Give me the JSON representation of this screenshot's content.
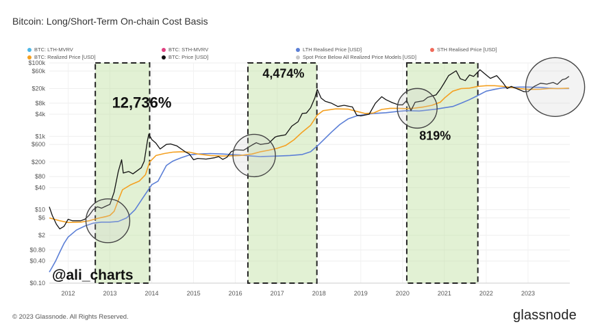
{
  "header": {
    "title": "Bitcoin: Long/Short-Term On-chain Cost Basis"
  },
  "legend": [
    {
      "label": "BTC: LTH-MVRV",
      "color": "#4fb7e6",
      "enabled": false
    },
    {
      "label": "BTC: STH-MVRV",
      "color": "#e04080",
      "enabled": false
    },
    {
      "label": "LTH Realised Price [USD]",
      "color": "#5b7fd6",
      "enabled": true
    },
    {
      "label": "STH Realised Price [USD]",
      "color": "#f06a5a",
      "enabled": false
    },
    {
      "label": "BTC: Realized Price [USD]",
      "color": "#f4a020",
      "enabled": true
    },
    {
      "label": "BTC: Price [USD]",
      "color": "#111111",
      "enabled": true
    },
    {
      "label": "Spot Price Below All Realized Price Models [USD]",
      "color": "#c9c9c9",
      "enabled": false
    }
  ],
  "footer": {
    "copyright": "© 2023 Glassnode. All Rights Reserved.",
    "brand": "glassnode"
  },
  "watermark": "@ali_charts",
  "chart_data": {
    "type": "line",
    "title": "Bitcoin: Long/Short-Term On-chain Cost Basis",
    "xlabel": "",
    "ylabel": "",
    "y_scale": "log",
    "xlim": [
      2011.55,
      2024.0
    ],
    "ylim": [
      0.1,
      100000
    ],
    "x_ticks": [
      "2012",
      "2013",
      "2014",
      "2015",
      "2016",
      "2017",
      "2018",
      "2019",
      "2020",
      "2021",
      "2022",
      "2023"
    ],
    "x_tick_values": [
      2012,
      2013,
      2014,
      2015,
      2016,
      2017,
      2018,
      2019,
      2020,
      2021,
      2022,
      2023
    ],
    "y_ticks": [
      "$0.10",
      "$0.40",
      "$0.80",
      "$2",
      "$6",
      "$10",
      "$40",
      "$80",
      "$200",
      "$600",
      "$1k",
      "$4k",
      "$8k",
      "$20k",
      "$60k",
      "$100k"
    ],
    "y_tick_values": [
      0.1,
      0.4,
      0.8,
      2,
      6,
      10,
      40,
      80,
      200,
      600,
      1000,
      4000,
      8000,
      20000,
      60000,
      100000
    ],
    "grid": true,
    "legend_position": "top",
    "series": [
      {
        "name": "BTC: Price [USD]",
        "color": "#111111",
        "points": [
          [
            2011.55,
            12
          ],
          [
            2011.62,
            7
          ],
          [
            2011.72,
            4
          ],
          [
            2011.8,
            3
          ],
          [
            2011.9,
            3.5
          ],
          [
            2012.0,
            5.5
          ],
          [
            2012.1,
            5
          ],
          [
            2012.2,
            5
          ],
          [
            2012.3,
            5
          ],
          [
            2012.4,
            5.5
          ],
          [
            2012.5,
            7
          ],
          [
            2012.6,
            10
          ],
          [
            2012.7,
            12
          ],
          [
            2012.8,
            11
          ],
          [
            2012.9,
            12.5
          ],
          [
            2013.0,
            14
          ],
          [
            2013.1,
            30
          ],
          [
            2013.2,
            110
          ],
          [
            2013.28,
            230
          ],
          [
            2013.32,
            100
          ],
          [
            2013.45,
            110
          ],
          [
            2013.55,
            95
          ],
          [
            2013.65,
            115
          ],
          [
            2013.75,
            140
          ],
          [
            2013.82,
            210
          ],
          [
            2013.9,
            800
          ],
          [
            2013.93,
            1150
          ],
          [
            2014.0,
            820
          ],
          [
            2014.1,
            650
          ],
          [
            2014.2,
            450
          ],
          [
            2014.35,
            600
          ],
          [
            2014.45,
            620
          ],
          [
            2014.6,
            550
          ],
          [
            2014.8,
            380
          ],
          [
            2014.9,
            330
          ],
          [
            2015.0,
            230
          ],
          [
            2015.1,
            250
          ],
          [
            2015.3,
            240
          ],
          [
            2015.5,
            260
          ],
          [
            2015.6,
            280
          ],
          [
            2015.7,
            235
          ],
          [
            2015.8,
            270
          ],
          [
            2015.9,
            380
          ],
          [
            2016.0,
            430
          ],
          [
            2016.2,
            420
          ],
          [
            2016.4,
            580
          ],
          [
            2016.5,
            670
          ],
          [
            2016.6,
            600
          ],
          [
            2016.8,
            650
          ],
          [
            2016.95,
            950
          ],
          [
            2017.0,
            1000
          ],
          [
            2017.2,
            1100
          ],
          [
            2017.35,
            1900
          ],
          [
            2017.5,
            2500
          ],
          [
            2017.6,
            4200
          ],
          [
            2017.7,
            4300
          ],
          [
            2017.8,
            6000
          ],
          [
            2017.9,
            11000
          ],
          [
            2017.96,
            19000
          ],
          [
            2018.05,
            11000
          ],
          [
            2018.15,
            9000
          ],
          [
            2018.3,
            8000
          ],
          [
            2018.45,
            6500
          ],
          [
            2018.6,
            7000
          ],
          [
            2018.8,
            6300
          ],
          [
            2018.9,
            3800
          ],
          [
            2019.0,
            3600
          ],
          [
            2019.2,
            4000
          ],
          [
            2019.35,
            8000
          ],
          [
            2019.5,
            12000
          ],
          [
            2019.6,
            10000
          ],
          [
            2019.75,
            8300
          ],
          [
            2019.9,
            7200
          ],
          [
            2020.0,
            7200
          ],
          [
            2020.1,
            9500
          ],
          [
            2020.2,
            5000
          ],
          [
            2020.3,
            8500
          ],
          [
            2020.5,
            9300
          ],
          [
            2020.6,
            11500
          ],
          [
            2020.8,
            13500
          ],
          [
            2020.9,
            19000
          ],
          [
            2021.0,
            29000
          ],
          [
            2021.1,
            45000
          ],
          [
            2021.28,
            61000
          ],
          [
            2021.38,
            37000
          ],
          [
            2021.5,
            33000
          ],
          [
            2021.6,
            47000
          ],
          [
            2021.7,
            43000
          ],
          [
            2021.85,
            65000
          ],
          [
            2022.0,
            47000
          ],
          [
            2022.1,
            38000
          ],
          [
            2022.25,
            45000
          ],
          [
            2022.4,
            29000
          ],
          [
            2022.5,
            20000
          ],
          [
            2022.6,
            23000
          ],
          [
            2022.75,
            19500
          ],
          [
            2022.9,
            16500
          ],
          [
            2023.0,
            16600
          ],
          [
            2023.15,
            23000
          ],
          [
            2023.3,
            28000
          ],
          [
            2023.45,
            26500
          ],
          [
            2023.6,
            29500
          ],
          [
            2023.7,
            26000
          ],
          [
            2023.82,
            35000
          ],
          [
            2023.9,
            37000
          ],
          [
            2023.98,
            43000
          ]
        ]
      },
      {
        "name": "BTC: Realized Price [USD]",
        "color": "#f4a020",
        "points": [
          [
            2011.55,
            6
          ],
          [
            2011.8,
            5
          ],
          [
            2012.0,
            4.5
          ],
          [
            2012.3,
            4.6
          ],
          [
            2012.5,
            5
          ],
          [
            2012.7,
            5.8
          ],
          [
            2012.9,
            6.5
          ],
          [
            2013.0,
            7
          ],
          [
            2013.1,
            9
          ],
          [
            2013.2,
            18
          ],
          [
            2013.3,
            35
          ],
          [
            2013.5,
            48
          ],
          [
            2013.7,
            60
          ],
          [
            2013.85,
            90
          ],
          [
            2013.95,
            200
          ],
          [
            2014.1,
            300
          ],
          [
            2014.3,
            340
          ],
          [
            2014.5,
            370
          ],
          [
            2014.7,
            380
          ],
          [
            2014.9,
            370
          ],
          [
            2015.1,
            330
          ],
          [
            2015.4,
            300
          ],
          [
            2015.7,
            290
          ],
          [
            2015.9,
            295
          ],
          [
            2016.1,
            300
          ],
          [
            2016.4,
            330
          ],
          [
            2016.6,
            380
          ],
          [
            2016.8,
            420
          ],
          [
            2017.0,
            470
          ],
          [
            2017.2,
            560
          ],
          [
            2017.4,
            800
          ],
          [
            2017.6,
            1300
          ],
          [
            2017.8,
            2000
          ],
          [
            2017.96,
            3800
          ],
          [
            2018.1,
            5000
          ],
          [
            2018.4,
            5600
          ],
          [
            2018.7,
            5500
          ],
          [
            2018.9,
            4800
          ],
          [
            2019.1,
            4200
          ],
          [
            2019.3,
            4300
          ],
          [
            2019.5,
            5400
          ],
          [
            2019.7,
            5800
          ],
          [
            2019.9,
            5800
          ],
          [
            2020.1,
            5700
          ],
          [
            2020.3,
            5900
          ],
          [
            2020.5,
            6300
          ],
          [
            2020.7,
            7000
          ],
          [
            2020.9,
            8500
          ],
          [
            2021.0,
            11000
          ],
          [
            2021.2,
            17000
          ],
          [
            2021.4,
            20000
          ],
          [
            2021.6,
            20500
          ],
          [
            2021.8,
            23000
          ],
          [
            2022.0,
            24000
          ],
          [
            2022.2,
            24000
          ],
          [
            2022.4,
            23000
          ],
          [
            2022.6,
            21500
          ],
          [
            2022.8,
            20000
          ],
          [
            2023.0,
            19000
          ],
          [
            2023.3,
            19200
          ],
          [
            2023.5,
            20000
          ],
          [
            2023.7,
            20000
          ],
          [
            2023.98,
            20500
          ]
        ]
      },
      {
        "name": "LTH Realised Price [USD]",
        "color": "#5b7fd6",
        "points": [
          [
            2011.55,
            0.2
          ],
          [
            2011.6,
            0.25
          ],
          [
            2011.7,
            0.4
          ],
          [
            2011.8,
            0.7
          ],
          [
            2011.9,
            1.2
          ],
          [
            2012.0,
            1.8
          ],
          [
            2012.2,
            2.8
          ],
          [
            2012.4,
            3.6
          ],
          [
            2012.6,
            4.3
          ],
          [
            2012.8,
            4.6
          ],
          [
            2013.0,
            4.6
          ],
          [
            2013.2,
            4.8
          ],
          [
            2013.4,
            6
          ],
          [
            2013.6,
            10
          ],
          [
            2013.8,
            22
          ],
          [
            2014.0,
            48
          ],
          [
            2014.15,
            60
          ],
          [
            2014.35,
            160
          ],
          [
            2014.5,
            210
          ],
          [
            2014.7,
            260
          ],
          [
            2014.9,
            310
          ],
          [
            2015.1,
            330
          ],
          [
            2015.4,
            340
          ],
          [
            2015.7,
            330
          ],
          [
            2015.9,
            320
          ],
          [
            2016.1,
            310
          ],
          [
            2016.4,
            290
          ],
          [
            2016.6,
            280
          ],
          [
            2016.8,
            285
          ],
          [
            2017.0,
            290
          ],
          [
            2017.3,
            300
          ],
          [
            2017.6,
            320
          ],
          [
            2017.8,
            380
          ],
          [
            2018.0,
            600
          ],
          [
            2018.3,
            1300
          ],
          [
            2018.5,
            2100
          ],
          [
            2018.7,
            3000
          ],
          [
            2018.9,
            3600
          ],
          [
            2019.1,
            3900
          ],
          [
            2019.3,
            4200
          ],
          [
            2019.6,
            4400
          ],
          [
            2019.9,
            4800
          ],
          [
            2020.1,
            5000
          ],
          [
            2020.4,
            4900
          ],
          [
            2020.6,
            5200
          ],
          [
            2020.8,
            5500
          ],
          [
            2021.0,
            6000
          ],
          [
            2021.2,
            6500
          ],
          [
            2021.4,
            8000
          ],
          [
            2021.6,
            10000
          ],
          [
            2021.8,
            13000
          ],
          [
            2022.0,
            17000
          ],
          [
            2022.2,
            19000
          ],
          [
            2022.4,
            21000
          ],
          [
            2022.6,
            21500
          ],
          [
            2022.8,
            22000
          ],
          [
            2023.0,
            22000
          ],
          [
            2023.3,
            21500
          ],
          [
            2023.5,
            20500
          ],
          [
            2023.7,
            20000
          ],
          [
            2023.98,
            20000
          ]
        ]
      }
    ],
    "annotations": [
      {
        "text": "12,736%",
        "x": 2013.05,
        "y": 6000,
        "font_size": 22
      },
      {
        "text": "4,474%",
        "x": 2016.65,
        "y": 40000,
        "font_size": 18
      },
      {
        "text": "819%",
        "x": 2020.4,
        "y": 800,
        "font_size": 18
      }
    ],
    "highlight_ranges": [
      {
        "x0": 2012.65,
        "x1": 2013.95
      },
      {
        "x0": 2016.3,
        "x1": 2017.95
      },
      {
        "x0": 2020.1,
        "x1": 2021.8
      }
    ],
    "circles": [
      {
        "cx": 2012.95,
        "cy": 5.0,
        "r_px": 32
      },
      {
        "cx": 2016.45,
        "cy": 300,
        "r_px": 31
      },
      {
        "cx": 2020.35,
        "cy": 5800,
        "r_px": 29
      },
      {
        "cx": 2023.65,
        "cy": 22000,
        "r_px": 43
      }
    ]
  }
}
